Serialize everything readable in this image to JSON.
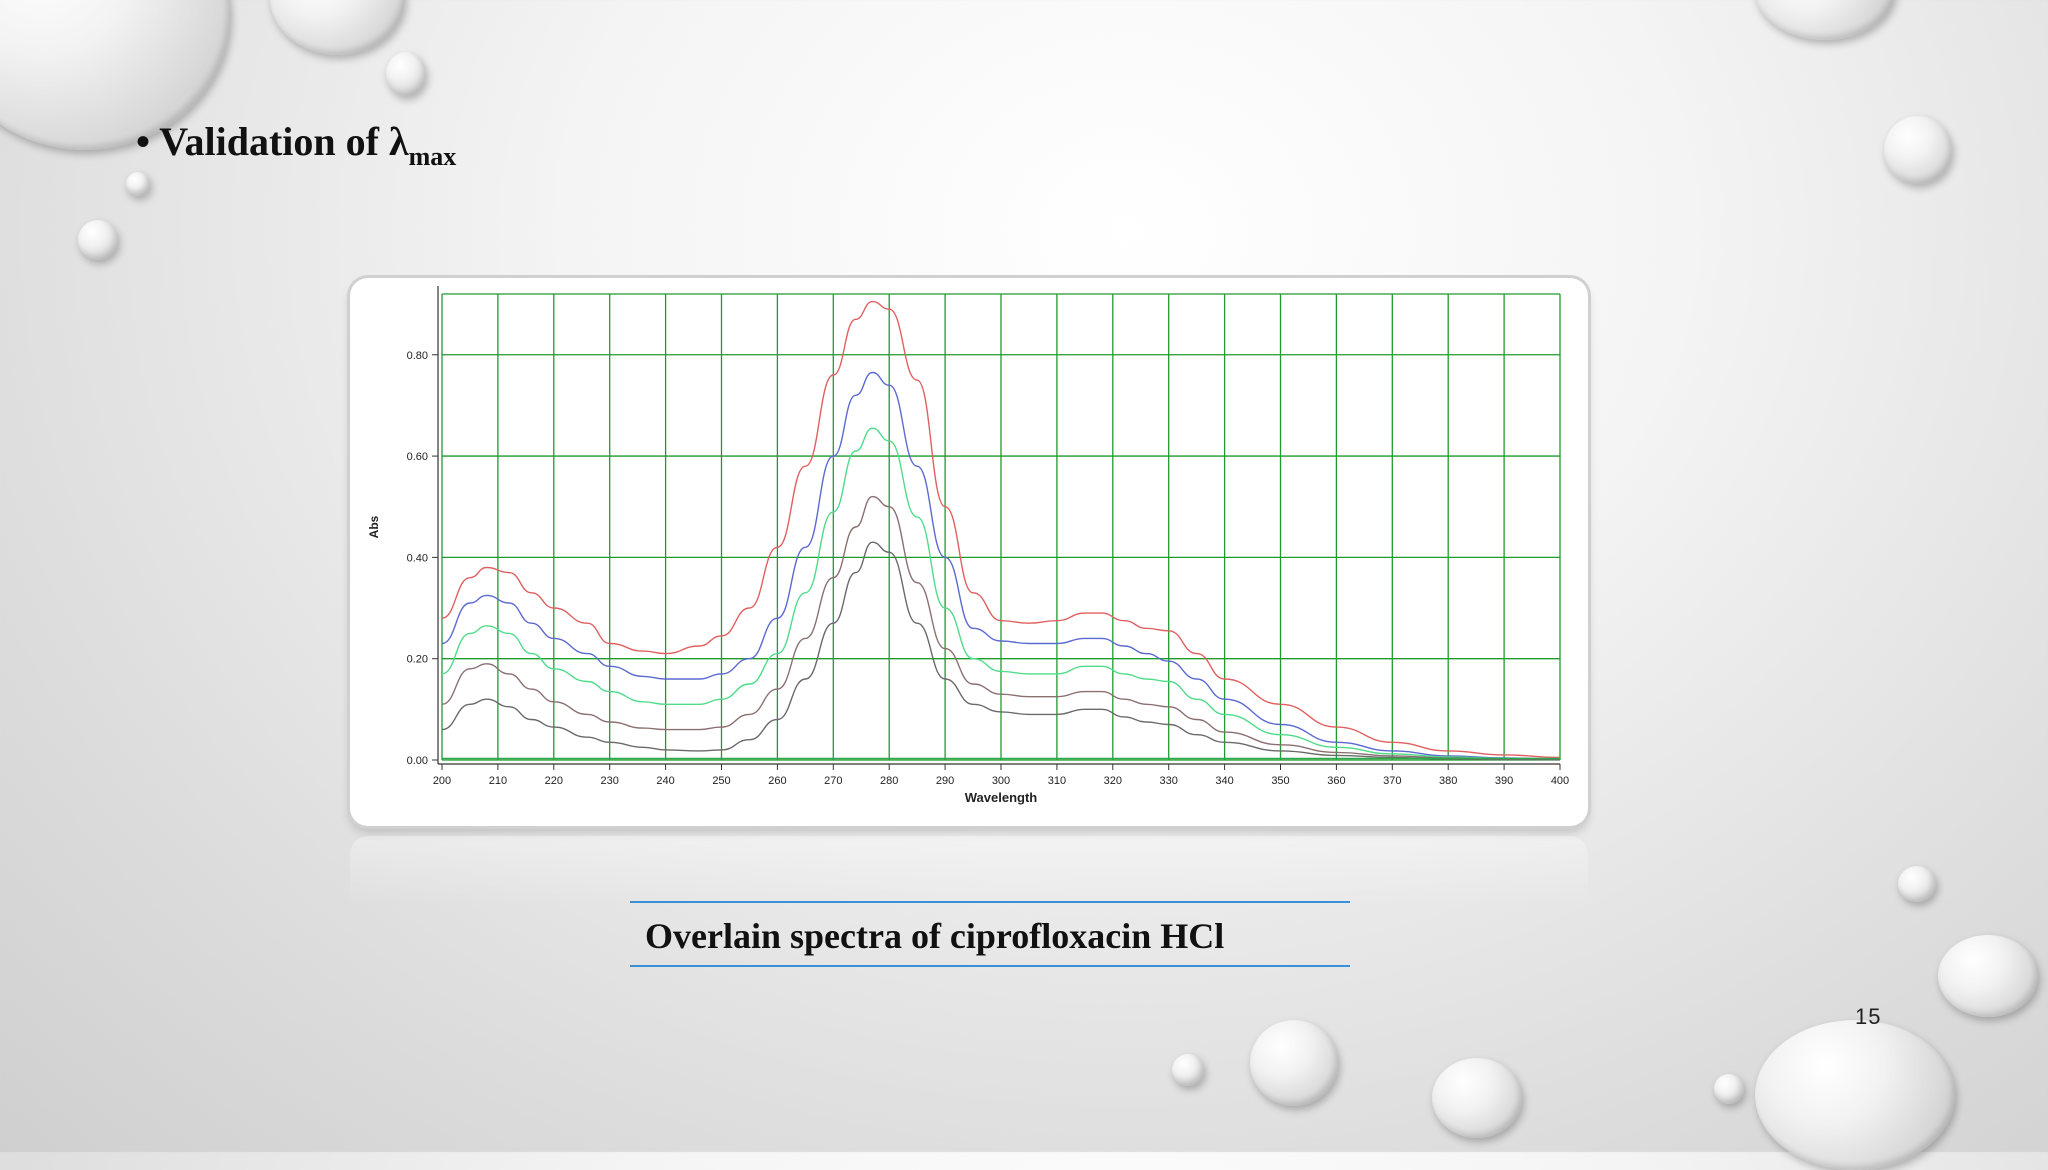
{
  "slide": {
    "bullet_symbol": "•",
    "heading_main": "Validation of λ",
    "heading_sub": "max",
    "caption": "Overlain spectra of ciprofloxacin HCl",
    "page_number": "15"
  },
  "chart_data": {
    "type": "line",
    "title": "",
    "xlabel": "Wavelength",
    "ylabel": "Abs",
    "xlim": [
      200,
      400
    ],
    "ylim": [
      0,
      0.92
    ],
    "xticks": [
      200,
      210,
      220,
      230,
      240,
      250,
      260,
      270,
      280,
      290,
      300,
      310,
      320,
      330,
      340,
      350,
      360,
      370,
      380,
      390,
      400
    ],
    "yticks": [
      0.0,
      0.2,
      0.4,
      0.6,
      0.8
    ],
    "ytick_labels": [
      "0.00",
      "0.20",
      "0.40",
      "0.60",
      "0.80"
    ],
    "grid": true,
    "grid_color": "#1f9a2e",
    "series": [
      {
        "color": "#e06060",
        "x": [
          200,
          205,
          208,
          212,
          216,
          220,
          226,
          230,
          236,
          240,
          246,
          250,
          255,
          260,
          265,
          270,
          274,
          277,
          280,
          285,
          290,
          295,
          300,
          305,
          310,
          315,
          318,
          322,
          326,
          330,
          335,
          340,
          350,
          360,
          370,
          380,
          390,
          400
        ],
        "y": [
          0.28,
          0.36,
          0.38,
          0.37,
          0.33,
          0.3,
          0.27,
          0.23,
          0.215,
          0.21,
          0.225,
          0.245,
          0.3,
          0.42,
          0.58,
          0.76,
          0.87,
          0.905,
          0.89,
          0.75,
          0.5,
          0.33,
          0.275,
          0.27,
          0.275,
          0.29,
          0.29,
          0.275,
          0.26,
          0.255,
          0.21,
          0.16,
          0.11,
          0.065,
          0.035,
          0.018,
          0.01,
          0.005
        ]
      },
      {
        "color": "#5a6ad0",
        "x": [
          200,
          205,
          208,
          212,
          216,
          220,
          226,
          230,
          236,
          240,
          246,
          250,
          255,
          260,
          265,
          270,
          274,
          277,
          280,
          285,
          290,
          295,
          300,
          305,
          310,
          315,
          318,
          322,
          326,
          330,
          335,
          340,
          350,
          360,
          370,
          380,
          390,
          400
        ],
        "y": [
          0.23,
          0.31,
          0.325,
          0.31,
          0.27,
          0.24,
          0.21,
          0.185,
          0.165,
          0.16,
          0.16,
          0.17,
          0.2,
          0.28,
          0.42,
          0.6,
          0.72,
          0.765,
          0.74,
          0.58,
          0.4,
          0.26,
          0.235,
          0.23,
          0.23,
          0.24,
          0.24,
          0.225,
          0.21,
          0.195,
          0.16,
          0.12,
          0.07,
          0.035,
          0.018,
          0.008,
          0.004,
          0.002
        ]
      },
      {
        "color": "#4fdc8a",
        "x": [
          200,
          205,
          208,
          212,
          216,
          220,
          226,
          230,
          236,
          240,
          246,
          250,
          255,
          260,
          265,
          270,
          274,
          277,
          280,
          285,
          290,
          295,
          300,
          305,
          310,
          315,
          318,
          322,
          326,
          330,
          335,
          340,
          350,
          360,
          370,
          380,
          390,
          400
        ],
        "y": [
          0.17,
          0.25,
          0.265,
          0.25,
          0.21,
          0.18,
          0.155,
          0.135,
          0.115,
          0.11,
          0.11,
          0.12,
          0.15,
          0.21,
          0.33,
          0.49,
          0.61,
          0.655,
          0.63,
          0.48,
          0.3,
          0.2,
          0.175,
          0.17,
          0.17,
          0.185,
          0.185,
          0.17,
          0.16,
          0.155,
          0.12,
          0.09,
          0.05,
          0.025,
          0.012,
          0.006,
          0.003,
          0.002
        ]
      },
      {
        "color": "#8a7070",
        "x": [
          200,
          205,
          208,
          212,
          216,
          220,
          226,
          230,
          236,
          240,
          246,
          250,
          255,
          260,
          265,
          270,
          274,
          277,
          280,
          285,
          290,
          295,
          300,
          305,
          310,
          315,
          318,
          322,
          326,
          330,
          335,
          340,
          350,
          360,
          370,
          380,
          390,
          400
        ],
        "y": [
          0.11,
          0.18,
          0.19,
          0.17,
          0.14,
          0.115,
          0.09,
          0.075,
          0.063,
          0.06,
          0.06,
          0.065,
          0.09,
          0.14,
          0.24,
          0.36,
          0.46,
          0.52,
          0.5,
          0.35,
          0.22,
          0.15,
          0.13,
          0.125,
          0.125,
          0.135,
          0.135,
          0.12,
          0.11,
          0.105,
          0.08,
          0.055,
          0.03,
          0.015,
          0.008,
          0.004,
          0.002,
          0.001
        ]
      },
      {
        "color": "#6a6a6a",
        "x": [
          200,
          205,
          208,
          212,
          216,
          220,
          226,
          230,
          236,
          240,
          246,
          250,
          255,
          260,
          265,
          270,
          274,
          277,
          280,
          285,
          290,
          295,
          300,
          305,
          310,
          315,
          318,
          322,
          326,
          330,
          335,
          340,
          350,
          360,
          370,
          380,
          390,
          400
        ],
        "y": [
          0.06,
          0.11,
          0.12,
          0.105,
          0.08,
          0.065,
          0.045,
          0.035,
          0.025,
          0.02,
          0.018,
          0.02,
          0.04,
          0.08,
          0.16,
          0.27,
          0.37,
          0.43,
          0.41,
          0.27,
          0.16,
          0.11,
          0.095,
          0.09,
          0.09,
          0.1,
          0.1,
          0.085,
          0.075,
          0.07,
          0.05,
          0.035,
          0.018,
          0.009,
          0.005,
          0.002,
          0.001,
          0.001
        ]
      },
      {
        "color": "#2fa84a",
        "x": [
          200,
          400
        ],
        "y": [
          0.003,
          0.003
        ]
      }
    ]
  }
}
